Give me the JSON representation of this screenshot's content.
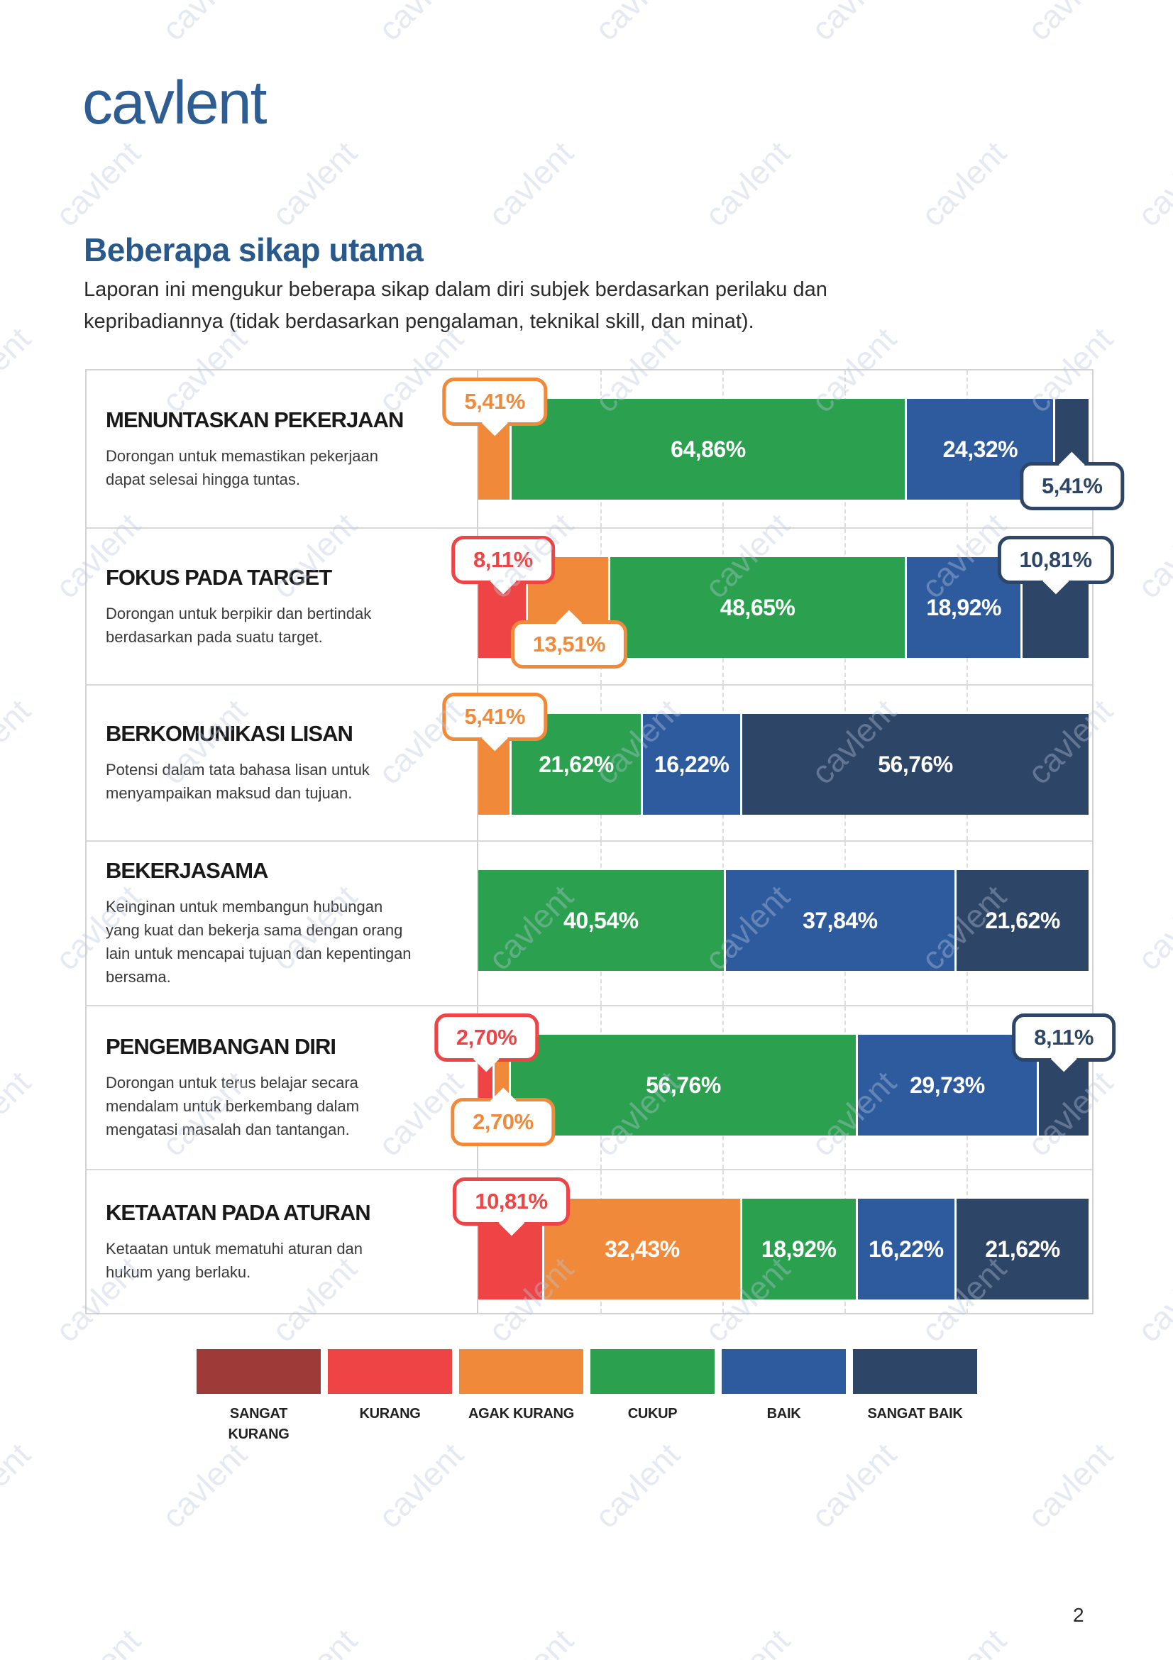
{
  "brand": {
    "logo_text": "cavlent"
  },
  "page": {
    "number": "2",
    "watermark_text": "cavlent"
  },
  "header": {
    "title": "Beberapa sikap utama",
    "intro_line1": "Laporan ini mengukur beberapa sikap dalam diri subjek berdasarkan perilaku dan",
    "intro_line2": "kepribadiannya (tidak berdasarkan pengalaman, teknikal skill, dan minat)."
  },
  "colors": {
    "logo_blue": "#2E5D94",
    "title_blue": "#29598B",
    "frame_gray": "#D2D2D2",
    "grid_gray": "#DDDDDD"
  },
  "chart_data": {
    "type": "bar",
    "orientation": "horizontal",
    "stacked": true,
    "unit": "percent",
    "axis": {
      "min": 0,
      "max": 100,
      "gridlines_pct": [
        20,
        40,
        60,
        80
      ],
      "grid_style": "dashed"
    },
    "categories": [
      "SANGAT KURANG",
      "KURANG",
      "AGAK KURANG",
      "CUKUP",
      "BAIK",
      "SANGAT BAIK"
    ],
    "palette": {
      "SANGAT KURANG": "#9E3A37",
      "KURANG": "#EE4446",
      "AGAK KURANG": "#F08A3A",
      "CUKUP": "#2BA04F",
      "BAIK": "#2E5B9D",
      "SANGAT BAIK": "#2D4566"
    },
    "legend": [
      {
        "label": "SANGAT KURANG",
        "color": "#9E3A37"
      },
      {
        "label": "KURANG",
        "color": "#EE4446"
      },
      {
        "label": "AGAK KURANG",
        "color": "#F08A3A"
      },
      {
        "label": "CUKUP",
        "color": "#2BA04F"
      },
      {
        "label": "BAIK",
        "color": "#2E5B9D"
      },
      {
        "label": "SANGAT BAIK",
        "color": "#2D4566"
      }
    ],
    "rows": [
      {
        "title": "MENUNTASKAN PEKERJAAN",
        "description": "Dorongan untuk memastikan pekerjaan dapat selesai hingga tuntas.",
        "segments": [
          {
            "category": "AGAK KURANG",
            "value": 5.41,
            "label": "5,41%",
            "display": "callout-above"
          },
          {
            "category": "CUKUP",
            "value": 64.86,
            "label": "64,86%",
            "display": "inside"
          },
          {
            "category": "BAIK",
            "value": 24.32,
            "label": "24,32%",
            "display": "inside"
          },
          {
            "category": "SANGAT BAIK",
            "value": 5.41,
            "label": "5,41%",
            "display": "callout-below"
          }
        ]
      },
      {
        "title": "FOKUS PADA TARGET",
        "description": "Dorongan untuk berpikir dan bertindak berdasarkan pada suatu target.",
        "segments": [
          {
            "category": "KURANG",
            "value": 8.11,
            "label": "8,11%",
            "display": "callout-above"
          },
          {
            "category": "AGAK KURANG",
            "value": 13.51,
            "label": "13,51%",
            "display": "callout-below"
          },
          {
            "category": "CUKUP",
            "value": 48.65,
            "label": "48,65%",
            "display": "inside"
          },
          {
            "category": "BAIK",
            "value": 18.92,
            "label": "18,92%",
            "display": "inside"
          },
          {
            "category": "SANGAT BAIK",
            "value": 10.81,
            "label": "10,81%",
            "display": "callout-above"
          }
        ]
      },
      {
        "title": "BERKOMUNIKASI LISAN",
        "description": "Potensi dalam tata bahasa lisan untuk menyampaikan maksud dan tujuan.",
        "segments": [
          {
            "category": "AGAK KURANG",
            "value": 5.41,
            "label": "5,41%",
            "display": "callout-above"
          },
          {
            "category": "CUKUP",
            "value": 21.62,
            "label": "21,62%",
            "display": "inside"
          },
          {
            "category": "BAIK",
            "value": 16.22,
            "label": "16,22%",
            "display": "inside"
          },
          {
            "category": "SANGAT BAIK",
            "value": 56.76,
            "label": "56,76%",
            "display": "inside"
          }
        ]
      },
      {
        "title": "BEKERJASAMA",
        "description": "Keinginan untuk membangun hubungan yang kuat dan bekerja sama dengan orang lain untuk mencapai tujuan dan kepentingan bersama.",
        "segments": [
          {
            "category": "CUKUP",
            "value": 40.54,
            "label": "40,54%",
            "display": "inside"
          },
          {
            "category": "BAIK",
            "value": 37.84,
            "label": "37,84%",
            "display": "inside"
          },
          {
            "category": "SANGAT BAIK",
            "value": 21.62,
            "label": "21,62%",
            "display": "inside"
          }
        ]
      },
      {
        "title": "PENGEMBANGAN DIRI",
        "description": "Dorongan untuk terus belajar secara mendalam untuk berkembang dalam mengatasi masalah dan tantangan.",
        "segments": [
          {
            "category": "KURANG",
            "value": 2.7,
            "label": "2,70%",
            "display": "callout-above"
          },
          {
            "category": "AGAK KURANG",
            "value": 2.7,
            "label": "2,70%",
            "display": "callout-below"
          },
          {
            "category": "CUKUP",
            "value": 56.76,
            "label": "56,76%",
            "display": "inside"
          },
          {
            "category": "BAIK",
            "value": 29.73,
            "label": "29,73%",
            "display": "inside"
          },
          {
            "category": "SANGAT BAIK",
            "value": 8.11,
            "label": "8,11%",
            "display": "callout-above"
          }
        ]
      },
      {
        "title": "KETAATAN PADA ATURAN",
        "description": "Ketaatan untuk mematuhi aturan dan hukum yang berlaku.",
        "segments": [
          {
            "category": "KURANG",
            "value": 10.81,
            "label": "10,81%",
            "display": "callout-above"
          },
          {
            "category": "AGAK KURANG",
            "value": 32.43,
            "label": "32,43%",
            "display": "inside"
          },
          {
            "category": "CUKUP",
            "value": 18.92,
            "label": "18,92%",
            "display": "inside"
          },
          {
            "category": "BAIK",
            "value": 16.22,
            "label": "16,22%",
            "display": "inside"
          },
          {
            "category": "SANGAT BAIK",
            "value": 21.62,
            "label": "21,62%",
            "display": "inside"
          }
        ]
      }
    ]
  }
}
